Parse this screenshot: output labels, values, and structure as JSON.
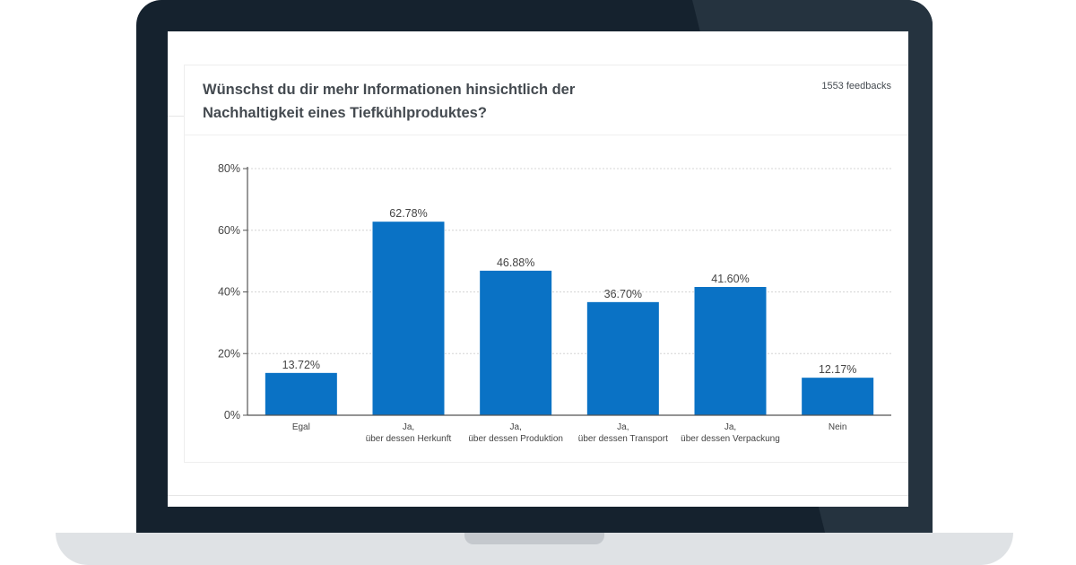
{
  "header": {
    "question": "Wünschst du dir mehr Informationen hinsichtlich der Nachhaltigkeit eines Tiefkühlproduktes?",
    "feedbacks": "1553 feedbacks"
  },
  "colors": {
    "bar": "#0a72c5",
    "grid": "#d4d4d4",
    "axis": "#555555",
    "text": "#444444"
  },
  "chart_data": {
    "type": "bar",
    "title": "Wünschst du dir mehr Informationen hinsichtlich der Nachhaltigkeit eines Tiefkühlproduktes?",
    "categories": [
      [
        "Egal"
      ],
      [
        "Ja,",
        "über dessen Herkunft"
      ],
      [
        "Ja,",
        "über dessen Produktion"
      ],
      [
        "Ja,",
        "über dessen Transport"
      ],
      [
        "Ja,",
        "über dessen Verpackung"
      ],
      [
        "Nein"
      ]
    ],
    "values": [
      13.72,
      62.78,
      46.88,
      36.7,
      41.6,
      12.17
    ],
    "value_labels": [
      "13.72%",
      "62.78%",
      "46.88%",
      "36.70%",
      "41.60%",
      "12.17%"
    ],
    "yticks": [
      0,
      20,
      40,
      60,
      80
    ],
    "ytick_labels": [
      "0%",
      "20%",
      "40%",
      "60%",
      "80%"
    ],
    "ylim": [
      0,
      80
    ],
    "xlabel": "",
    "ylabel": "",
    "grid": true
  }
}
